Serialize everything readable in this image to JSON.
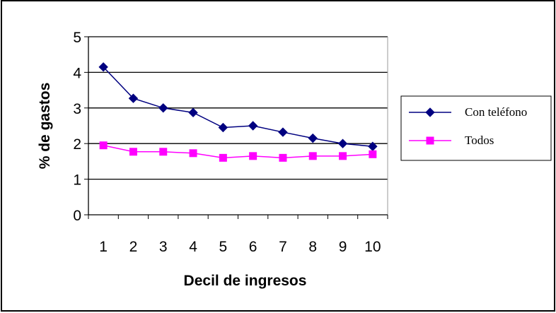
{
  "chart_data": {
    "type": "line",
    "title": "",
    "xlabel": "Decil de ingresos",
    "ylabel": "% de gastos",
    "categories": [
      "1",
      "2",
      "3",
      "4",
      "5",
      "6",
      "7",
      "8",
      "9",
      "10"
    ],
    "series": [
      {
        "name": "Con teléfono",
        "color": "#000080",
        "marker": "diamond",
        "values": [
          4.15,
          3.27,
          3.0,
          2.87,
          2.45,
          2.5,
          2.32,
          2.15,
          2.0,
          1.92
        ]
      },
      {
        "name": "Todos",
        "color": "#ff00ff",
        "marker": "square",
        "values": [
          1.95,
          1.77,
          1.77,
          1.73,
          1.6,
          1.65,
          1.6,
          1.65,
          1.65,
          1.7
        ]
      }
    ],
    "ylim": [
      0,
      5
    ],
    "yticks": [
      "0",
      "1",
      "2",
      "3",
      "4",
      "5"
    ],
    "grid": true,
    "legend": "right"
  }
}
